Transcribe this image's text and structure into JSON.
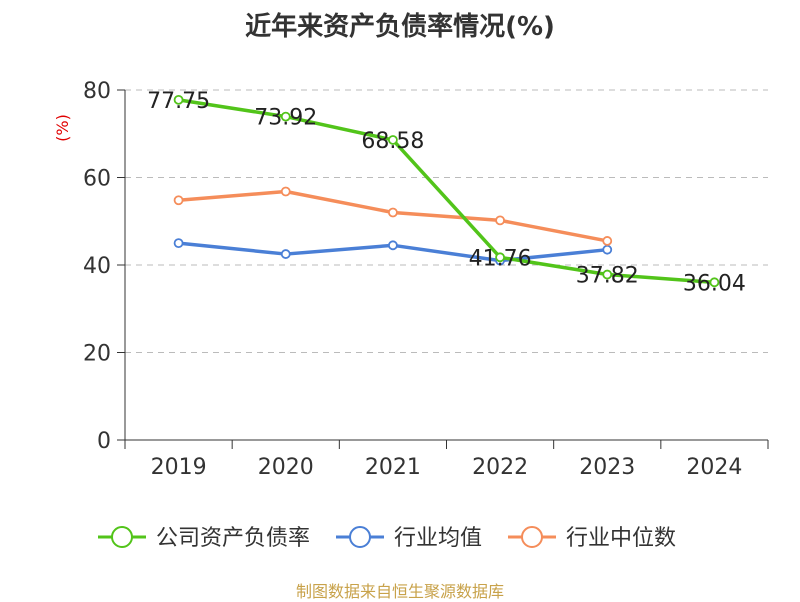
{
  "chart_data": {
    "type": "line",
    "title": "近年来资产负债率情况(%)",
    "ylabel": "(%)",
    "xlabel": "",
    "ylim": [
      0,
      80
    ],
    "yticks": [
      0,
      20,
      40,
      60,
      80
    ],
    "grid": true,
    "legend_position": "bottom",
    "categories": [
      "2019",
      "2020",
      "2021",
      "2022",
      "2023",
      "2024"
    ],
    "series": [
      {
        "name": "公司资产负债率",
        "color": "#52c41a",
        "values": [
          77.75,
          73.92,
          68.58,
          41.76,
          37.82,
          36.04
        ],
        "labels": [
          "77.75",
          "73.92",
          "68.58",
          "41.76",
          "37.82",
          "36.04"
        ]
      },
      {
        "name": "行业均值",
        "color": "#4a7fd6",
        "values": [
          45.0,
          42.5,
          44.5,
          41.0,
          43.5,
          null
        ]
      },
      {
        "name": "行业中位数",
        "color": "#f58d5a",
        "values": [
          54.8,
          56.8,
          52.0,
          50.2,
          45.5,
          null
        ]
      }
    ]
  },
  "footer": {
    "source": "制图数据来自恒生聚源数据库"
  }
}
